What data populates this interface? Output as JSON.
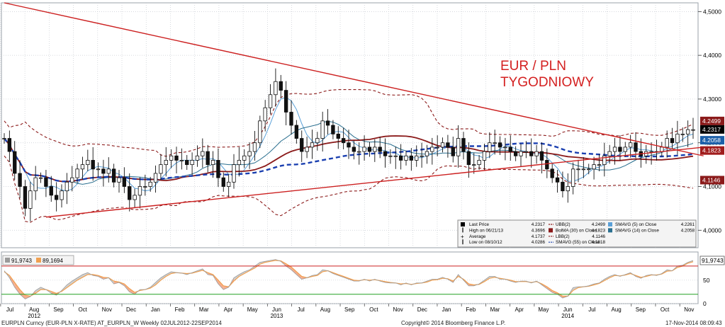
{
  "chart_data": [
    {
      "type": "candlestick",
      "title": "EUR / PLN",
      "subtitle": "TYGODNIOWY",
      "y_axis_position": "right",
      "ylim": [
        3.96,
        4.52
      ],
      "yticks": [
        "4,5000",
        "4,4000",
        "4,3000",
        "4,2000",
        "4,1000",
        "4,0000"
      ],
      "ytick_values": [
        4.5,
        4.4,
        4.3,
        4.2,
        4.1,
        4.0
      ],
      "x_months": [
        "Jul",
        "Aug",
        "Sep",
        "Oct",
        "Nov",
        "Dec",
        "Jan",
        "Feb",
        "Mar",
        "Apr",
        "May",
        "Jun",
        "Jul",
        "Aug",
        "Sep",
        "Oct",
        "Nov",
        "Dec",
        "Jan",
        "Feb",
        "Mar",
        "Apr",
        "May",
        "Jun",
        "Jul",
        "Aug",
        "Sep",
        "Oct",
        "Nov"
      ],
      "x_years": [
        {
          "label": "2012",
          "at_month_index": 1
        },
        {
          "label": "2013",
          "at_month_index": 11
        },
        {
          "label": "2014",
          "at_month_index": 23
        }
      ],
      "price_labels": [
        {
          "text": "4.2499",
          "value": 4.2499,
          "color": "#8b1a1a"
        },
        {
          "text": "4.2317",
          "value": 4.2317,
          "color": "#000000"
        },
        {
          "text": "4.2058",
          "value": 4.2058,
          "color": "#1c5fa8"
        },
        {
          "text": "4.1823",
          "value": 4.1823,
          "color": "#a01c1c"
        },
        {
          "text": "4.1146",
          "value": 4.1146,
          "color": "#8b1a1a"
        }
      ],
      "weekly_close": [
        4.21,
        4.18,
        4.13,
        4.1,
        4.05,
        4.09,
        4.12,
        4.12,
        4.1,
        4.08,
        4.07,
        4.09,
        4.11,
        4.12,
        4.14,
        4.15,
        4.16,
        4.14,
        4.14,
        4.13,
        4.14,
        4.11,
        4.12,
        4.1,
        4.07,
        4.08,
        4.1,
        4.1,
        4.11,
        4.13,
        4.15,
        4.16,
        4.17,
        4.16,
        4.16,
        4.15,
        4.16,
        4.17,
        4.18,
        4.15,
        4.16,
        4.12,
        4.1,
        4.11,
        4.15,
        4.16,
        4.17,
        4.18,
        4.2,
        4.25,
        4.28,
        4.31,
        4.34,
        4.32,
        4.27,
        4.24,
        4.21,
        4.18,
        4.19,
        4.2,
        4.21,
        4.25,
        4.24,
        4.22,
        4.21,
        4.2,
        4.19,
        4.18,
        4.18,
        4.19,
        4.18,
        4.19,
        4.18,
        4.17,
        4.17,
        4.17,
        4.16,
        4.17,
        4.16,
        4.17,
        4.17,
        4.18,
        4.19,
        4.19,
        4.2,
        4.19,
        4.17,
        4.21,
        4.18,
        4.15,
        4.15,
        4.16,
        4.18,
        4.2,
        4.2,
        4.19,
        4.19,
        4.18,
        4.17,
        4.18,
        4.18,
        4.17,
        4.18,
        4.16,
        4.14,
        4.12,
        4.11,
        4.09,
        4.1,
        4.14,
        4.14,
        4.14,
        4.14,
        4.15,
        4.15,
        4.17,
        4.18,
        4.19,
        4.18,
        4.19,
        4.2,
        4.18,
        4.17,
        4.18,
        4.18,
        4.18,
        4.19,
        4.21,
        4.2,
        4.22,
        4.22,
        4.23,
        4.23
      ],
      "indicator_lines": [
        {
          "name": "UBB(2)",
          "color": "#8b1a1a",
          "style": "dashed"
        },
        {
          "name": "BolMA (30) on Close",
          "color": "#8b1a1a",
          "style": "solid"
        },
        {
          "name": "LBB(2)",
          "color": "#8b1a1a",
          "style": "dashed"
        },
        {
          "name": "SMAVG (55) on Close",
          "color": "#1a3fb0",
          "style": "dashed"
        },
        {
          "name": "SMAVG (5) on Close",
          "color": "#5aa0d8",
          "style": "solid"
        },
        {
          "name": "SMAVG (14) on Close",
          "color": "#2a6f8f",
          "style": "solid"
        }
      ],
      "trendlines": [
        {
          "from": [
            0,
            4.52
          ],
          "to": [
            134,
            4.17
          ],
          "color": "#cc2020"
        },
        {
          "from": [
            8,
            4.03
          ],
          "to": [
            134,
            4.19
          ],
          "color": "#cc2020"
        }
      ],
      "legend": {
        "placement": "bottom-right",
        "rows": [
          {
            "left_icon": "square",
            "left_color": "#000000",
            "left_label": "Last Price",
            "left_value": "4.2317",
            "mid_icon": "dash",
            "mid_color": "#8b1a1a",
            "mid_label": "UBB(2)",
            "mid_value": "4.2499",
            "right_icon": "square",
            "right_color": "#5aa0d8",
            "right_label": "SMAVG (5) on Close",
            "right_value": "4.2261"
          },
          {
            "left_icon": "bar",
            "left_color": "#000000",
            "left_label": "High on 06/21/13",
            "left_value": "4.3696",
            "mid_icon": "square",
            "mid_color": "#8b1a1a",
            "mid_label": "BolMA (30) on Close",
            "mid_value": "4.1823",
            "right_icon": "square",
            "right_color": "#2a6f8f",
            "right_label": "SMAVG (14) on Close",
            "right_value": "4.2058"
          },
          {
            "left_icon": "plus",
            "left_color": "#000000",
            "left_label": "Average",
            "left_value": "4.1737",
            "mid_icon": "dash",
            "mid_color": "#8b1a1a",
            "mid_label": "LBB(2)",
            "mid_value": "4.1146",
            "right_icon": "",
            "right_color": "",
            "right_label": "",
            "right_value": ""
          },
          {
            "left_icon": "bar",
            "left_color": "#000000",
            "left_label": "Low on 08/10/12",
            "left_value": "4.0286",
            "mid_icon": "dash",
            "mid_color": "#1a3fb0",
            "mid_label": "SMAVG (55) on Close",
            "mid_value": "4.1818",
            "right_icon": "",
            "right_color": "",
            "right_label": "",
            "right_value": ""
          }
        ]
      }
    },
    {
      "type": "area",
      "name": "oscillator",
      "ylim": [
        0,
        110
      ],
      "yticks": [
        "50",
        "0"
      ],
      "ytick_values": [
        50,
        0
      ],
      "levels": [
        {
          "value": 80,
          "color": "#cc2020"
        },
        {
          "value": 20,
          "color": "#22a022"
        }
      ],
      "legend": [
        {
          "text": "91,9743",
          "color": "#9a9a9a"
        },
        {
          "text": "89,1694",
          "color": "#f0a050"
        }
      ],
      "last_value_label": "91,9743",
      "series_fast": [
        70,
        55,
        35,
        20,
        10,
        15,
        28,
        35,
        30,
        22,
        18,
        28,
        40,
        48,
        55,
        62,
        66,
        60,
        58,
        52,
        55,
        42,
        45,
        38,
        25,
        20,
        30,
        30,
        35,
        45,
        55,
        62,
        68,
        66,
        65,
        62,
        66,
        70,
        74,
        62,
        60,
        42,
        30,
        35,
        55,
        62,
        68,
        72,
        80,
        88,
        90,
        92,
        94,
        90,
        80,
        72,
        62,
        52,
        55,
        60,
        62,
        72,
        70,
        64,
        60,
        56,
        52,
        48,
        48,
        52,
        48,
        52,
        48,
        45,
        44,
        44,
        40,
        44,
        40,
        44,
        44,
        48,
        52,
        52,
        56,
        52,
        45,
        62,
        50,
        38,
        38,
        42,
        50,
        58,
        58,
        52,
        52,
        48,
        45,
        48,
        48,
        44,
        48,
        40,
        32,
        24,
        20,
        12,
        16,
        34,
        36,
        36,
        38,
        42,
        44,
        52,
        58,
        62,
        58,
        62,
        66,
        58,
        54,
        60,
        62,
        60,
        64,
        72,
        70,
        80,
        82,
        88,
        91.97
      ],
      "series_slow": [
        68,
        60,
        45,
        30,
        18,
        16,
        22,
        30,
        30,
        26,
        22,
        26,
        34,
        42,
        50,
        56,
        62,
        62,
        60,
        56,
        55,
        48,
        46,
        42,
        32,
        24,
        28,
        30,
        33,
        40,
        50,
        58,
        64,
        66,
        65,
        64,
        65,
        68,
        71,
        66,
        62,
        50,
        38,
        36,
        48,
        58,
        64,
        70,
        76,
        84,
        88,
        90,
        92,
        91,
        85,
        78,
        68,
        58,
        55,
        58,
        60,
        68,
        70,
        66,
        62,
        58,
        54,
        50,
        49,
        51,
        50,
        51,
        49,
        47,
        45,
        44,
        42,
        43,
        41,
        43,
        44,
        46,
        50,
        51,
        54,
        53,
        48,
        58,
        52,
        42,
        40,
        41,
        47,
        54,
        56,
        54,
        52,
        50,
        47,
        47,
        47,
        45,
        47,
        42,
        36,
        28,
        23,
        16,
        16,
        28,
        34,
        36,
        37,
        40,
        43,
        49,
        55,
        60,
        59,
        61,
        64,
        60,
        56,
        58,
        61,
        61,
        63,
        69,
        70,
        77,
        80,
        86,
        89.17
      ]
    }
  ],
  "footer": {
    "left": "EURPLN Curncy (EUR-PLN X-RATE) AT_EURPLN_W  Weekly 02JUL2012-22SEP2014",
    "center": "Copyright© 2014 Bloomberg Finance L.P.",
    "right": "17-Nov-2014 08:09:43"
  }
}
